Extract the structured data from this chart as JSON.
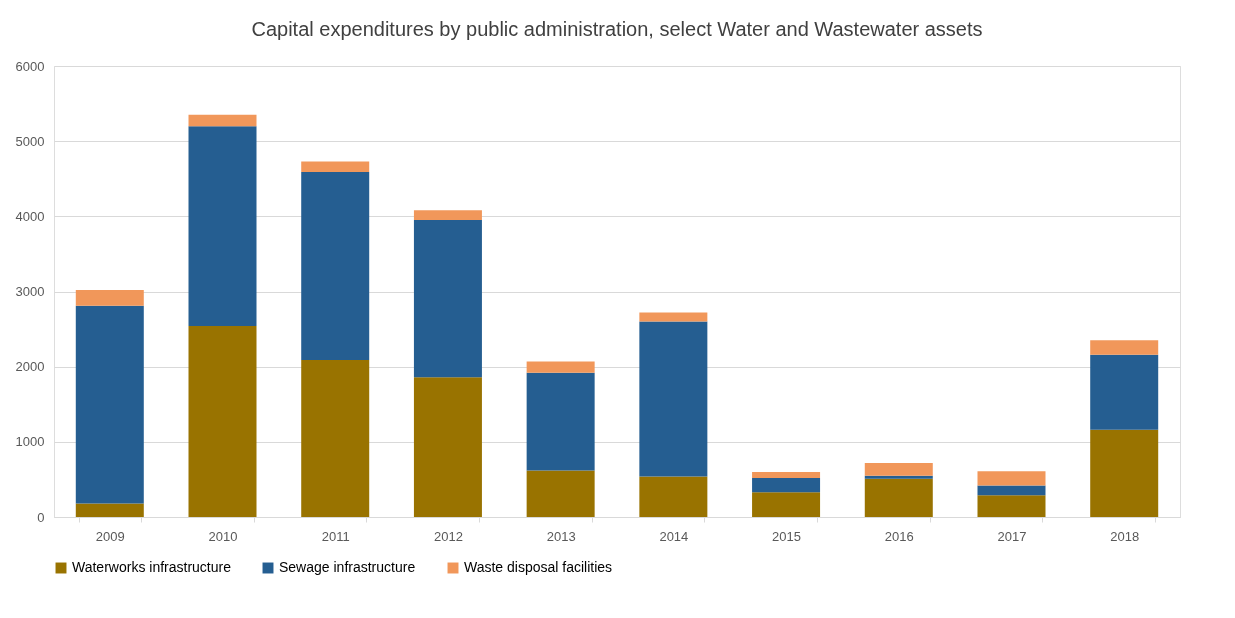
{
  "chart_data": {
    "type": "bar",
    "title": "Capital expenditures by public administration, select Water and Wastewater assets",
    "categories": [
      "2009",
      "2010",
      "2011",
      "2012",
      "2013",
      "2014",
      "2015",
      "2016",
      "2017",
      "2018"
    ],
    "stacked": true,
    "series": [
      {
        "name": "Waterworks infrastructure",
        "color": "#997300",
        "values": [
          180,
          2540,
          2090,
          1860,
          620,
          540,
          330,
          510,
          290,
          1160
        ]
      },
      {
        "name": "Sewage infrastructure",
        "color": "#255e91",
        "values": [
          2630,
          2660,
          2500,
          2090,
          1300,
          2060,
          190,
          40,
          130,
          1000
        ]
      },
      {
        "name": "Waste disposal facilities",
        "color": "#f1975a",
        "values": [
          210,
          150,
          140,
          130,
          150,
          120,
          80,
          170,
          190,
          190
        ]
      }
    ],
    "ylim": [
      0,
      6000
    ],
    "yticks": [
      0,
      1000,
      2000,
      3000,
      4000,
      5000,
      6000
    ],
    "grid": "y",
    "legend": "bottom"
  }
}
